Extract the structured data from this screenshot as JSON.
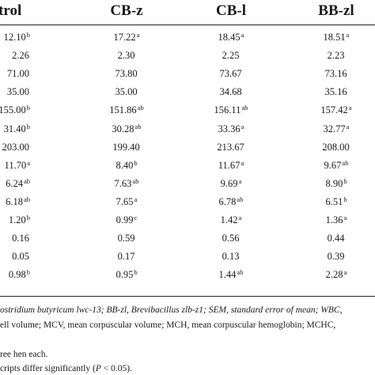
{
  "table": {
    "headers": [
      "ontrol",
      "CB-z",
      "CB-l",
      "BB-zl"
    ],
    "rows": [
      [
        {
          "v": "12.10",
          "s": "b"
        },
        {
          "v": "17.22",
          "s": "a"
        },
        {
          "v": "18.45",
          "s": "a"
        },
        {
          "v": "18.51",
          "s": "a"
        }
      ],
      [
        {
          "v": "2.26",
          "s": ""
        },
        {
          "v": "2.30",
          "s": ""
        },
        {
          "v": "2.25",
          "s": ""
        },
        {
          "v": "2.23",
          "s": ""
        }
      ],
      [
        {
          "v": "71.00",
          "s": ""
        },
        {
          "v": "73.80",
          "s": ""
        },
        {
          "v": "73.67",
          "s": ""
        },
        {
          "v": "73.16",
          "s": ""
        }
      ],
      [
        {
          "v": "35.00",
          "s": ""
        },
        {
          "v": "35.00",
          "s": ""
        },
        {
          "v": "34.68",
          "s": ""
        },
        {
          "v": "35.16",
          "s": ""
        }
      ],
      [
        {
          "v": "155.00",
          "s": "b"
        },
        {
          "v": "151.86",
          "s": "ab"
        },
        {
          "v": "156.11",
          "s": "ab"
        },
        {
          "v": "157.42",
          "s": "a"
        }
      ],
      [
        {
          "v": "31.40",
          "s": "b"
        },
        {
          "v": "30.28",
          "s": "ab"
        },
        {
          "v": "33.36",
          "s": "a"
        },
        {
          "v": "32.77",
          "s": "a"
        }
      ],
      [
        {
          "v": "203.00",
          "s": ""
        },
        {
          "v": "199.40",
          "s": ""
        },
        {
          "v": "213.67",
          "s": ""
        },
        {
          "v": "208.00",
          "s": ""
        }
      ],
      [
        {
          "v": "11.70",
          "s": "a"
        },
        {
          "v": "8.40",
          "s": "b"
        },
        {
          "v": "11.67",
          "s": "a"
        },
        {
          "v": "9.67",
          "s": "ab"
        }
      ],
      [
        {
          "v": "6.24",
          "s": "ab"
        },
        {
          "v": "7.63",
          "s": "ab"
        },
        {
          "v": "9.69",
          "s": "a"
        },
        {
          "v": "8.90",
          "s": "b"
        }
      ],
      [
        {
          "v": "6.18",
          "s": "ab"
        },
        {
          "v": "7.65",
          "s": "a"
        },
        {
          "v": "6.78",
          "s": "ab"
        },
        {
          "v": "6.51",
          "s": "b"
        }
      ],
      [
        {
          "v": "1.20",
          "s": "b"
        },
        {
          "v": "0.99",
          "s": "c"
        },
        {
          "v": "1.42",
          "s": "a"
        },
        {
          "v": "1.36",
          "s": "a"
        }
      ],
      [
        {
          "v": "0.16",
          "s": ""
        },
        {
          "v": "0.59",
          "s": ""
        },
        {
          "v": "0.56",
          "s": ""
        },
        {
          "v": "0.44",
          "s": ""
        }
      ],
      [
        {
          "v": "0.05",
          "s": ""
        },
        {
          "v": "0.17",
          "s": ""
        },
        {
          "v": "0.13",
          "s": ""
        },
        {
          "v": "0.39",
          "s": ""
        }
      ],
      [
        {
          "v": "0.98",
          "s": "b"
        },
        {
          "v": "0.95",
          "s": "b"
        },
        {
          "v": "1.44",
          "s": "ab"
        },
        {
          "v": "2.28",
          "s": "a"
        }
      ]
    ]
  },
  "footnotes": {
    "line1": "ostridium butyricum lwc-13; BB-zl, Brevibacillus zlb-z1; SEM, standard error of mean; WBC,",
    "line2": "ell volume; MCV, mean corpuscular volume; MCH, mean corpuscular hemoglobin; MCHC,",
    "line3": "ree hen each.",
    "line4_pre": "cripts differ significantly (",
    "line4_p": "P",
    "line4_post": " < 0.05)."
  }
}
